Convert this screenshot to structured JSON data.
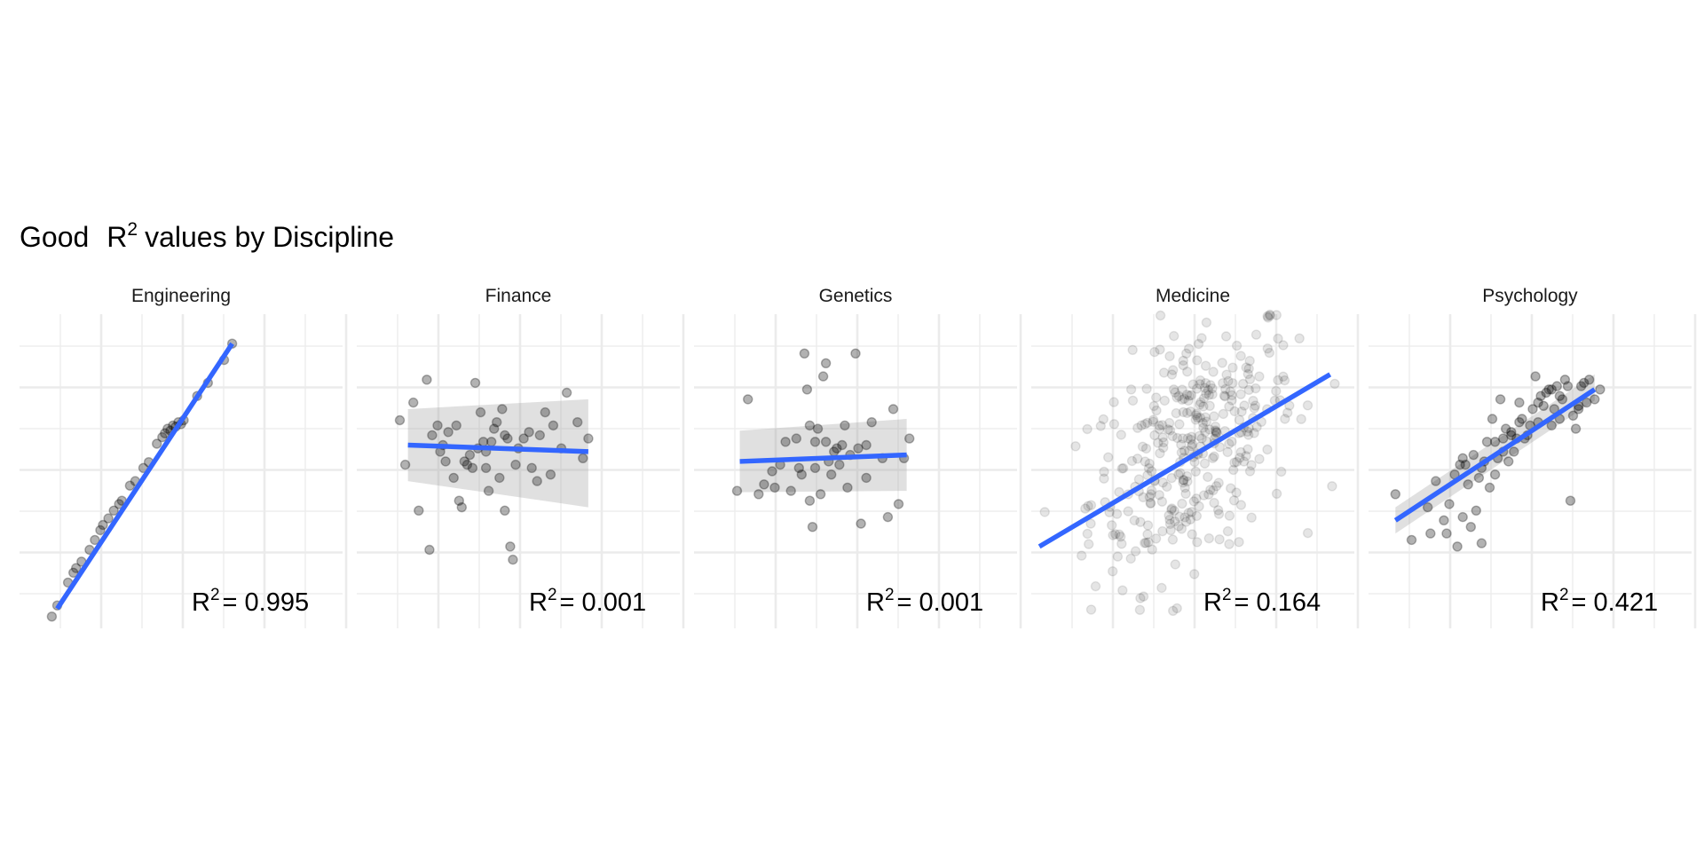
{
  "chart_data": {
    "type": "scatter",
    "title": {
      "prefix": "Good",
      "r_letter": "R",
      "superscript": "2",
      "suffix": "values by Discipline"
    },
    "facets": [
      {
        "panel": "Engineering",
        "r2_value": "0.995",
        "point_alpha": 0.3,
        "points": [
          [
            -2.4,
            -2.62
          ],
          [
            -2.3,
            -2.45
          ],
          [
            -2.1,
            -2.1
          ],
          [
            -2.0,
            -1.95
          ],
          [
            -1.95,
            -1.88
          ],
          [
            -1.85,
            -1.78
          ],
          [
            -1.7,
            -1.6
          ],
          [
            -1.6,
            -1.45
          ],
          [
            -1.5,
            -1.3
          ],
          [
            -1.45,
            -1.22
          ],
          [
            -1.35,
            -1.12
          ],
          [
            -1.25,
            -1.0
          ],
          [
            -1.15,
            -0.9
          ],
          [
            -1.1,
            -0.85
          ],
          [
            -0.95,
            -0.62
          ],
          [
            -0.85,
            -0.55
          ],
          [
            -0.7,
            -0.35
          ],
          [
            -0.6,
            -0.26
          ],
          [
            -0.45,
            0.02
          ],
          [
            -0.35,
            0.12
          ],
          [
            -0.3,
            0.18
          ],
          [
            -0.25,
            0.25
          ],
          [
            -0.2,
            0.22
          ],
          [
            -0.15,
            0.3
          ],
          [
            -0.1,
            0.28
          ],
          [
            -0.05,
            0.35
          ],
          [
            0.0,
            0.32
          ],
          [
            0.05,
            0.38
          ],
          [
            0.3,
            0.75
          ],
          [
            0.5,
            0.95
          ],
          [
            0.8,
            1.3
          ],
          [
            0.95,
            1.55
          ]
        ],
        "fit": {
          "x": [
            -2.3,
            0.95
          ],
          "y": [
            -2.5,
            1.55
          ]
        }
      },
      {
        "panel": "Finance",
        "r2_value": "0.001",
        "point_alpha": 0.3,
        "points": [
          [
            -2.2,
            0.38
          ],
          [
            -2.1,
            -0.3
          ],
          [
            -1.95,
            0.65
          ],
          [
            -1.85,
            -1.0
          ],
          [
            -1.7,
            1.0
          ],
          [
            -1.65,
            -1.6
          ],
          [
            -1.5,
            0.3
          ],
          [
            -1.4,
            0.0
          ],
          [
            -1.35,
            -0.25
          ],
          [
            -1.3,
            0.2
          ],
          [
            -1.2,
            -0.5
          ],
          [
            -1.1,
            -0.85
          ],
          [
            -1.05,
            -0.95
          ],
          [
            -1.0,
            -0.25
          ],
          [
            -0.9,
            -0.15
          ],
          [
            -0.8,
            0.95
          ],
          [
            -0.7,
            0.5
          ],
          [
            -0.6,
            -0.35
          ],
          [
            -0.55,
            -0.7
          ],
          [
            -0.5,
            0.05
          ],
          [
            -0.45,
            0.25
          ],
          [
            -0.35,
            -0.5
          ],
          [
            -0.3,
            0.55
          ],
          [
            -0.25,
            -1.0
          ],
          [
            -0.15,
            -1.55
          ],
          [
            -0.1,
            -1.75
          ],
          [
            -0.05,
            -0.3
          ],
          [
            0.1,
            0.1
          ],
          [
            0.2,
            0.2
          ],
          [
            0.35,
            -0.55
          ],
          [
            0.4,
            0.15
          ],
          [
            0.5,
            0.5
          ],
          [
            0.6,
            -0.45
          ],
          [
            0.9,
            0.8
          ],
          [
            1.1,
            0.35
          ],
          [
            1.2,
            -0.2
          ],
          [
            1.3,
            0.1
          ],
          [
            -1.45,
            -0.1
          ],
          [
            -1.15,
            0.3
          ],
          [
            -0.95,
            -0.3
          ],
          [
            -0.75,
            -0.05
          ],
          [
            -0.65,
            0.05
          ],
          [
            -0.4,
            0.35
          ],
          [
            -0.2,
            0.1
          ],
          [
            0.0,
            -0.05
          ],
          [
            0.25,
            -0.35
          ],
          [
            -1.6,
            0.15
          ],
          [
            -0.85,
            -0.35
          ],
          [
            -0.6,
            -0.1
          ],
          [
            -0.25,
            0.15
          ],
          [
            0.8,
            -0.05
          ],
          [
            0.65,
            0.3
          ]
        ],
        "fit": {
          "x": [
            -2.05,
            1.3
          ],
          "y": [
            0.0,
            -0.1
          ]
        },
        "band": {
          "x": [
            -2.05,
            1.3
          ],
          "y_low": [
            -0.55,
            -0.95
          ],
          "y_high": [
            0.55,
            0.7
          ]
        }
      },
      {
        "panel": "Genetics",
        "r2_value": "0.001",
        "point_alpha": 0.3,
        "points": [
          [
            -2.2,
            -0.7
          ],
          [
            -2.0,
            0.7
          ],
          [
            -1.8,
            -0.75
          ],
          [
            -1.7,
            -0.6
          ],
          [
            -1.55,
            -0.4
          ],
          [
            -1.5,
            -0.65
          ],
          [
            -1.4,
            -0.3
          ],
          [
            -1.3,
            0.05
          ],
          [
            -1.2,
            -0.7
          ],
          [
            -1.1,
            0.1
          ],
          [
            -1.0,
            -0.45
          ],
          [
            -0.95,
            1.4
          ],
          [
            -0.9,
            0.85
          ],
          [
            -0.85,
            -0.85
          ],
          [
            -0.8,
            -1.25
          ],
          [
            -0.75,
            -0.35
          ],
          [
            -0.7,
            0.25
          ],
          [
            -0.65,
            -0.75
          ],
          [
            -0.6,
            1.05
          ],
          [
            -0.5,
            -0.25
          ],
          [
            -0.45,
            -0.45
          ],
          [
            -0.4,
            -0.1
          ],
          [
            -0.3,
            -0.3
          ],
          [
            -0.2,
            0.3
          ],
          [
            -0.15,
            -0.65
          ],
          [
            -0.1,
            -0.15
          ],
          [
            0.0,
            1.4
          ],
          [
            0.1,
            -1.2
          ],
          [
            0.2,
            -0.5
          ],
          [
            0.3,
            0.35
          ],
          [
            0.5,
            -0.2
          ],
          [
            0.6,
            -1.1
          ],
          [
            0.7,
            0.55
          ],
          [
            0.8,
            -0.9
          ],
          [
            0.9,
            -0.2
          ],
          [
            1.0,
            0.1
          ],
          [
            -0.55,
            0.05
          ],
          [
            -0.35,
            -0.05
          ],
          [
            -0.25,
            0.0
          ],
          [
            0.05,
            -0.05
          ],
          [
            -1.05,
            -0.35
          ],
          [
            -0.75,
            0.05
          ],
          [
            0.2,
            0.0
          ],
          [
            -0.85,
            0.3
          ],
          [
            -0.55,
            1.25
          ]
        ],
        "fit": {
          "x": [
            -2.15,
            0.95
          ],
          "y": [
            -0.25,
            -0.15
          ]
        },
        "band": {
          "x": [
            -2.15,
            0.95
          ],
          "y_low": [
            -0.72,
            -0.7
          ],
          "y_high": [
            0.22,
            0.4
          ]
        }
      },
      {
        "panel": "Medicine",
        "r2_value": "0.164",
        "point_alpha": 0.1,
        "points": "cloud",
        "fit": {
          "x": [
            -2.85,
            2.55
          ],
          "y": [
            -1.55,
            1.08
          ]
        }
      },
      {
        "panel": "Psychology",
        "r2_value": "0.421",
        "point_alpha": 0.3,
        "points": [
          [
            -2.5,
            -0.75
          ],
          [
            -2.2,
            -1.45
          ],
          [
            -1.9,
            -0.95
          ],
          [
            -1.85,
            -1.35
          ],
          [
            -1.75,
            -0.55
          ],
          [
            -1.6,
            -1.15
          ],
          [
            -1.55,
            -1.35
          ],
          [
            -1.5,
            -0.9
          ],
          [
            -1.4,
            -0.45
          ],
          [
            -1.35,
            -1.55
          ],
          [
            -1.3,
            -0.3
          ],
          [
            -1.25,
            -1.1
          ],
          [
            -1.2,
            -0.3
          ],
          [
            -1.15,
            -0.6
          ],
          [
            -1.1,
            -1.25
          ],
          [
            -1.05,
            -0.15
          ],
          [
            -1.0,
            -1.0
          ],
          [
            -0.95,
            -0.5
          ],
          [
            -0.9,
            -1.5
          ],
          [
            -0.85,
            -0.25
          ],
          [
            -0.8,
            0.05
          ],
          [
            -0.75,
            -0.65
          ],
          [
            -0.7,
            0.4
          ],
          [
            -0.65,
            -0.45
          ],
          [
            -0.6,
            -0.2
          ],
          [
            -0.55,
            0.7
          ],
          [
            -0.5,
            0.1
          ],
          [
            -0.45,
            0.25
          ],
          [
            -0.4,
            -0.25
          ],
          [
            -0.35,
            0.2
          ],
          [
            -0.3,
            -0.1
          ],
          [
            -0.25,
            0.1
          ],
          [
            -0.2,
            0.65
          ],
          [
            -0.15,
            0.4
          ],
          [
            -0.1,
            0.1
          ],
          [
            0.0,
            0.3
          ],
          [
            0.05,
            0.55
          ],
          [
            0.1,
            1.05
          ],
          [
            0.15,
            0.35
          ],
          [
            0.2,
            0.75
          ],
          [
            0.25,
            0.6
          ],
          [
            0.3,
            0.8
          ],
          [
            0.35,
            0.85
          ],
          [
            0.4,
            0.3
          ],
          [
            0.45,
            0.55
          ],
          [
            0.5,
            0.9
          ],
          [
            0.55,
            0.4
          ],
          [
            0.6,
            0.7
          ],
          [
            0.65,
            1.0
          ],
          [
            0.7,
            0.9
          ],
          [
            0.75,
            -0.85
          ],
          [
            0.8,
            0.45
          ],
          [
            0.85,
            0.25
          ],
          [
            0.9,
            0.6
          ],
          [
            0.95,
            0.9
          ],
          [
            1.0,
            0.95
          ],
          [
            1.05,
            0.65
          ],
          [
            1.1,
            1.0
          ],
          [
            1.2,
            0.7
          ],
          [
            1.3,
            0.85
          ],
          [
            -1.25,
            -0.2
          ],
          [
            -0.9,
            -0.35
          ],
          [
            -0.65,
            0.05
          ],
          [
            -0.5,
            -0.1
          ],
          [
            -0.35,
            0.15
          ],
          [
            -0.2,
            0.35
          ],
          [
            0.15,
            0.65
          ],
          [
            0.4,
            0.85
          ],
          [
            0.55,
            0.75
          ],
          [
            0.9,
            0.55
          ],
          [
            -0.05,
            0.15
          ]
        ],
        "fit": {
          "x": [
            -2.5,
            1.2
          ],
          "y": [
            -1.15,
            0.85
          ]
        },
        "band": {
          "x": [
            -2.5,
            1.2
          ],
          "y_low": [
            -1.35,
            0.68
          ],
          "y_high": [
            -0.95,
            1.08
          ]
        }
      }
    ],
    "xlim": [
      -3.0,
      3.0
    ],
    "ylim": [
      -2.8,
      2.0
    ],
    "grid": true,
    "axis_ticks": false,
    "colors": {
      "point": "#000000",
      "fit_line": "#3366ff",
      "band": "#999999",
      "grid": "#ebebeb",
      "background": "#ffffff"
    }
  }
}
